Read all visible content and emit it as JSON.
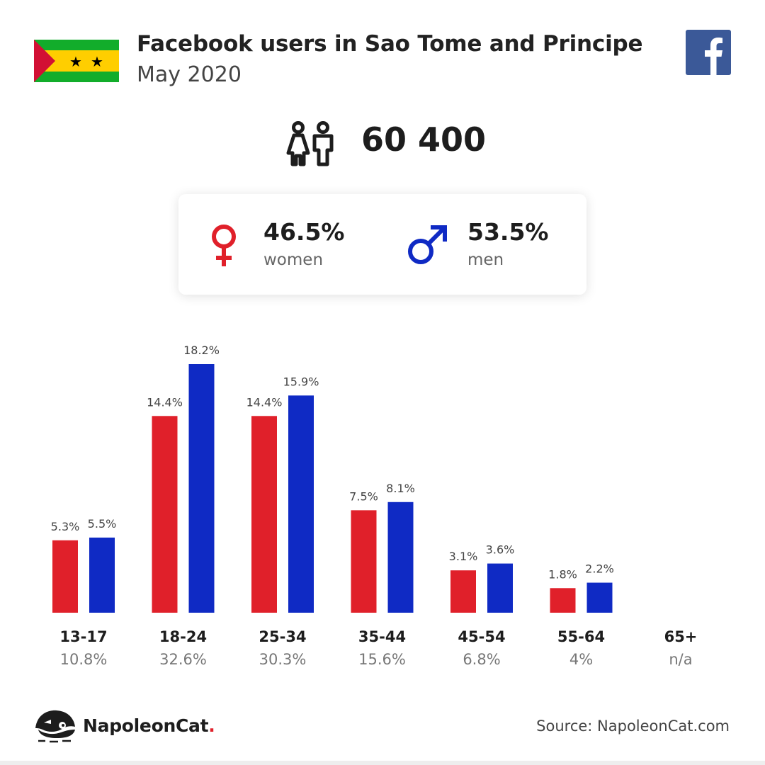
{
  "header": {
    "title": "Facebook users in Sao Tome and Principe",
    "subtitle": "May 2020"
  },
  "total_users": "60 400",
  "gender": {
    "women": {
      "value": "46.5%",
      "label": "women"
    },
    "men": {
      "value": "53.5%",
      "label": "men"
    }
  },
  "colors": {
    "women": "#e0202a",
    "men": "#0f2ac4",
    "facebook": "#3b5998"
  },
  "icons": {
    "flag": "sao-tome-and-principe-flag",
    "facebook": "facebook-logo",
    "people": "people-icon",
    "female": "female-symbol-icon",
    "male": "male-symbol-icon",
    "brand": "napoleoncat-logo"
  },
  "chart_data": {
    "type": "bar",
    "categories": [
      "13-17",
      "18-24",
      "25-34",
      "35-44",
      "45-54",
      "55-64",
      "65+"
    ],
    "category_totals": [
      "10.8%",
      "32.6%",
      "30.3%",
      "15.6%",
      "6.8%",
      "4%",
      "n/a"
    ],
    "series": [
      {
        "values": [
          5.3,
          14.4,
          14.4,
          7.5,
          3.1,
          1.8,
          null
        ],
        "labels": [
          "5.3%",
          "14.4%",
          "14.4%",
          "7.5%",
          "3.1%",
          "1.8%",
          ""
        ]
      },
      {
        "values": [
          5.5,
          18.2,
          15.9,
          8.1,
          3.6,
          2.2,
          null
        ],
        "labels": [
          "5.5%",
          "18.2%",
          "15.9%",
          "8.1%",
          "3.6%",
          "2.2%",
          ""
        ]
      }
    ],
    "ylim": [
      0,
      18.2
    ],
    "grid": false
  },
  "footer": {
    "brand": "NapoleonCat",
    "brand_dot": ".",
    "source": "Source: NapoleonCat.com"
  }
}
